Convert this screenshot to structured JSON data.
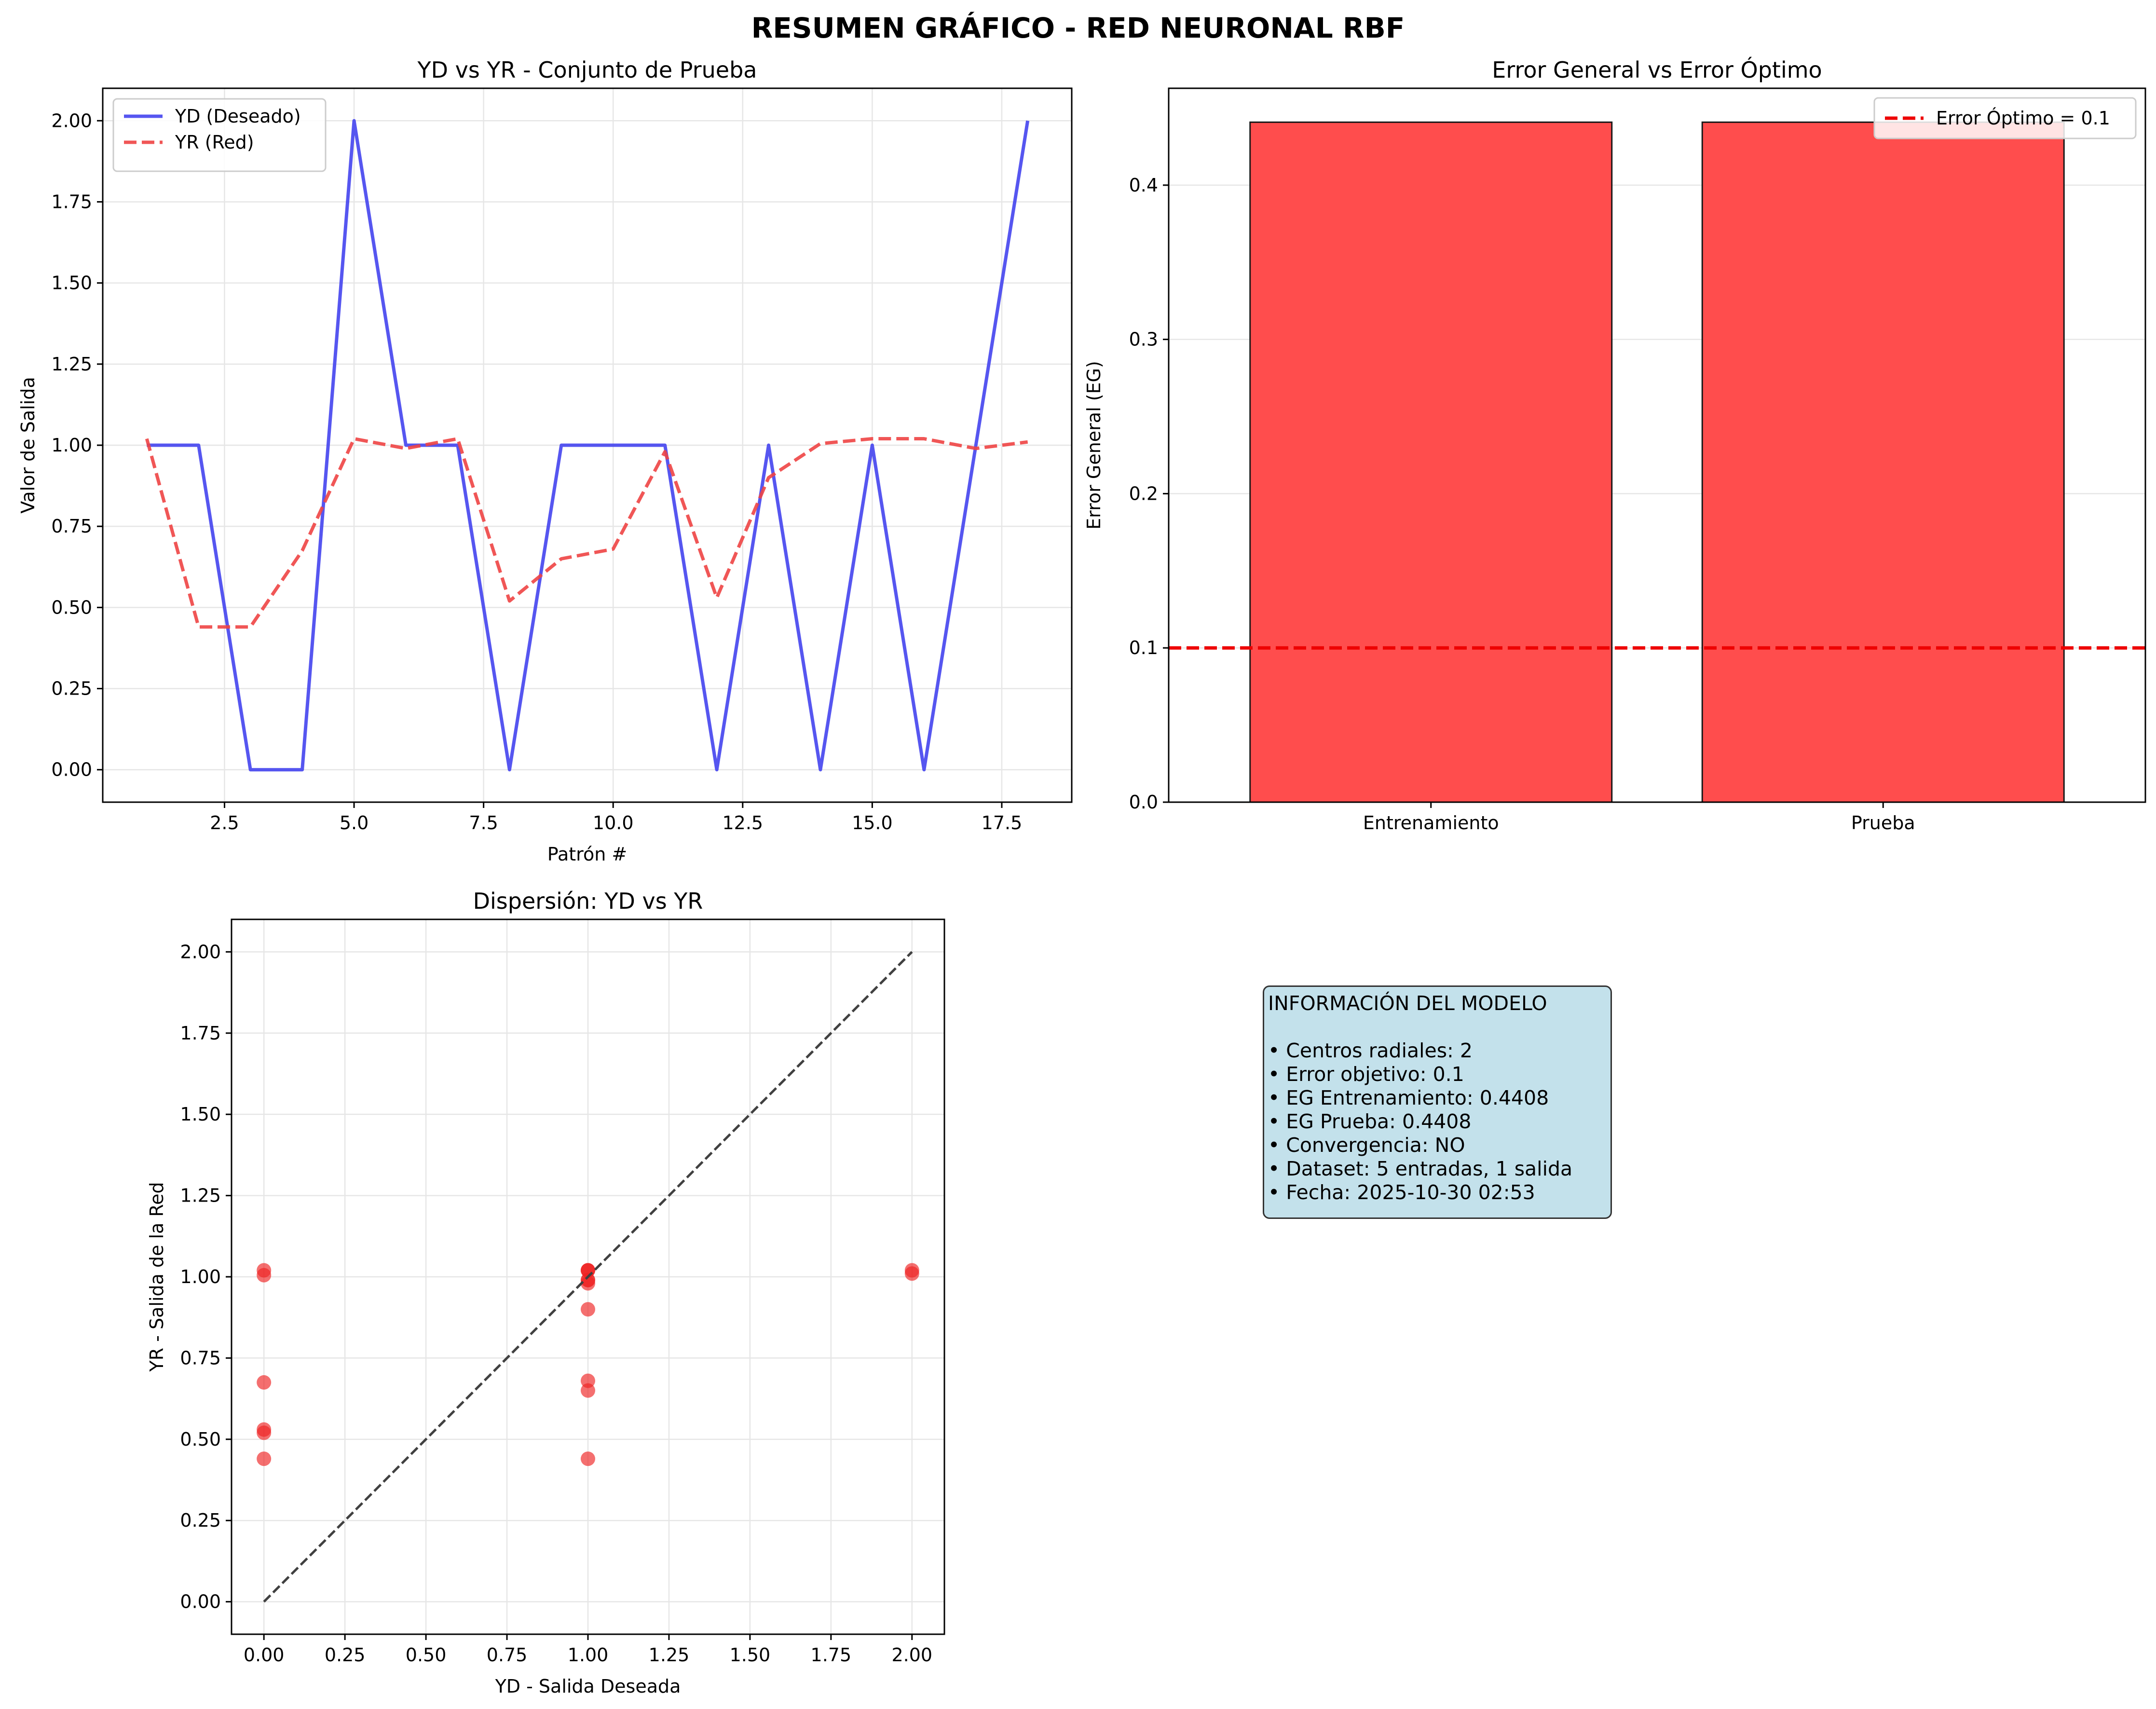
{
  "figure": {
    "title": "RESUMEN GRÁFICO - RED NEURONAL RBF"
  },
  "colors": {
    "yd": "#4444ee",
    "yr": "#ee4444",
    "bar_fill": "#ff4d4d",
    "optimum_line": "#ee0000",
    "scatter": "#ee2222",
    "identity_line": "#404040",
    "info_box_bg": "#c3e1eb"
  },
  "chart_data": [
    {
      "type": "line",
      "title": "YD vs YR - Conjunto de Prueba",
      "xlabel": "Patrón #",
      "ylabel": "Valor de Salida",
      "x": [
        1,
        2,
        3,
        4,
        5,
        6,
        7,
        8,
        9,
        10,
        11,
        12,
        13,
        14,
        15,
        16,
        17,
        18
      ],
      "series": [
        {
          "name": "YD (Deseado)",
          "style": "solid",
          "values": [
            1,
            1,
            0,
            0,
            2,
            1,
            1,
            0,
            1,
            1,
            1,
            0,
            1,
            0,
            1,
            0,
            1,
            2
          ]
        },
        {
          "name": "YR (Red)",
          "style": "dashed",
          "values": [
            1.02,
            0.44,
            0.44,
            0.675,
            1.02,
            0.99,
            1.02,
            0.52,
            0.65,
            0.68,
            0.98,
            0.53,
            0.9,
            1.005,
            1.02,
            1.02,
            0.99,
            1.01
          ]
        }
      ],
      "xlim": [
        0.15,
        18.85
      ],
      "ylim": [
        -0.1,
        2.1
      ],
      "xticks": [
        "2.5",
        "5.0",
        "7.5",
        "10.0",
        "12.5",
        "15.0",
        "17.5"
      ],
      "yticks": [
        "0.00",
        "0.25",
        "0.50",
        "0.75",
        "1.00",
        "1.25",
        "1.50",
        "1.75",
        "2.00"
      ],
      "grid": true,
      "legend": "upper left"
    },
    {
      "type": "bar",
      "title": "Error General vs Error Óptimo",
      "xlabel": "",
      "ylabel": "Error General (EG)",
      "categories": [
        "Entrenamiento",
        "Prueba"
      ],
      "values": [
        0.4408,
        0.4408
      ],
      "ylim": [
        0,
        0.4628
      ],
      "yticks": [
        "0.0",
        "0.1",
        "0.2",
        "0.3",
        "0.4"
      ],
      "reference_line": {
        "name": "Error Óptimo = 0.1",
        "value": 0.1
      },
      "grid": true,
      "legend": "upper right"
    },
    {
      "type": "scatter",
      "title": "Dispersión: YD vs YR",
      "xlabel": "YD - Salida Deseada",
      "ylabel": "YR - Salida de la Red",
      "points": [
        [
          1,
          1.02
        ],
        [
          1,
          0.44
        ],
        [
          0,
          0.44
        ],
        [
          0,
          0.675
        ],
        [
          2,
          1.02
        ],
        [
          1,
          0.99
        ],
        [
          1,
          1.02
        ],
        [
          0,
          0.52
        ],
        [
          1,
          0.65
        ],
        [
          1,
          0.68
        ],
        [
          1,
          0.98
        ],
        [
          0,
          0.53
        ],
        [
          1,
          0.9
        ],
        [
          0,
          1.005
        ],
        [
          1,
          1.02
        ],
        [
          0,
          1.02
        ],
        [
          1,
          0.99
        ],
        [
          2,
          1.01
        ]
      ],
      "identity_line": [
        [
          0,
          0
        ],
        [
          2,
          2
        ]
      ],
      "xlim": [
        -0.1,
        2.1
      ],
      "ylim": [
        -0.1,
        2.1
      ],
      "xticks": [
        "0.00",
        "0.25",
        "0.50",
        "0.75",
        "1.00",
        "1.25",
        "1.50",
        "1.75",
        "2.00"
      ],
      "yticks": [
        "0.00",
        "0.25",
        "0.50",
        "0.75",
        "1.00",
        "1.25",
        "1.50",
        "1.75",
        "2.00"
      ],
      "grid": true
    }
  ],
  "info": {
    "heading": "INFORMACIÓN DEL MODELO",
    "lines": [
      "• Centros radiales: 2",
      "• Error objetivo: 0.1",
      "• EG Entrenamiento: 0.4408",
      "• EG Prueba: 0.4408",
      "• Convergencia: NO",
      "• Dataset: 5 entradas, 1 salida",
      "• Fecha: 2025-10-30 02:53"
    ]
  }
}
